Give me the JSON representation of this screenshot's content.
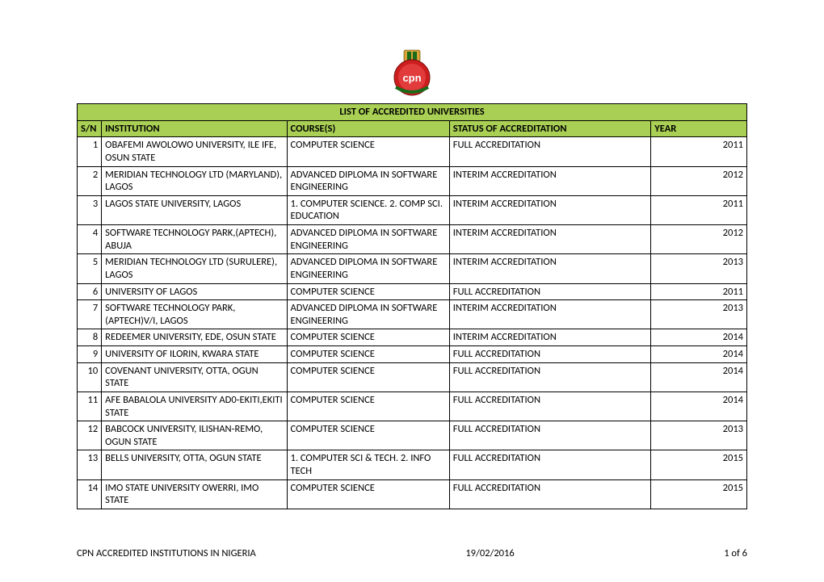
{
  "colors": {
    "header_bg": "#a9cf54",
    "border": "#000000",
    "page_bg": "#ffffff",
    "text": "#000000",
    "logo_green": "#1a6b1a",
    "logo_red": "#cc1e1e",
    "logo_gold": "#d8a43a"
  },
  "title": "LIST OF ACCREDITED  UNIVERSITIES",
  "columns": {
    "sn": "S/N",
    "institution": "INSTITUTION",
    "course": "COURSE(S)",
    "status": "STATUS OF ACCREDITATION",
    "year": "YEAR"
  },
  "rows": [
    {
      "sn": "1",
      "institution": "OBAFEMI AWOLOWO UNIVERSITY, ILE IFE, OSUN STATE",
      "course": "COMPUTER SCIENCE",
      "status": "FULL ACCREDITATION",
      "year": "2011"
    },
    {
      "sn": "2",
      "institution": "MERIDIAN TECHNOLOGY LTD (MARYLAND), LAGOS",
      "course": "ADVANCED DIPLOMA IN SOFTWARE ENGINEERING",
      "status": "INTERIM ACCREDITATION",
      "year": "2012"
    },
    {
      "sn": "3",
      "institution": "LAGOS STATE UNIVERSITY, LAGOS",
      "course": "1. COMPUTER SCIENCE. 2. COMP SCI. EDUCATION",
      "status": "INTERIM ACCREDITATION",
      "year": "2011"
    },
    {
      "sn": "4",
      "institution": "SOFTWARE TECHNOLOGY PARK,(APTECH), ABUJA",
      "course": "ADVANCED DIPLOMA IN SOFTWARE ENGINEERING",
      "status": "INTERIM ACCREDITATION",
      "year": "2012"
    },
    {
      "sn": "5",
      "institution": "MERIDIAN TECHNOLOGY LTD (SURULERE), LAGOS",
      "course": "ADVANCED DIPLOMA IN SOFTWARE ENGINEERING",
      "status": "INTERIM ACCREDITATION",
      "year": "2013"
    },
    {
      "sn": "6",
      "institution": "UNIVERSITY OF LAGOS",
      "course": "COMPUTER SCIENCE",
      "status": "FULL ACCREDITATION",
      "year": "2011"
    },
    {
      "sn": "7",
      "institution": "SOFTWARE TECHNOLOGY PARK,(APTECH)V/I, LAGOS",
      "course": "ADVANCED DIPLOMA IN SOFTWARE ENGINEERING",
      "status": "INTERIM ACCREDITATION",
      "year": "2013"
    },
    {
      "sn": "8",
      "institution": "REDEEMER UNIVERSITY, EDE, OSUN STATE",
      "course": "COMPUTER SCIENCE",
      "status": "INTERIM ACCREDITATION",
      "year": "2014"
    },
    {
      "sn": "9",
      "institution": "UNIVERSITY OF ILORIN, KWARA STATE",
      "course": "COMPUTER SCIENCE",
      "status": "FULL ACCREDITATION",
      "year": "2014"
    },
    {
      "sn": "10",
      "institution": "COVENANT UNIVERSITY, OTTA, OGUN STATE",
      "course": "COMPUTER SCIENCE",
      "status": "FULL ACCREDITATION",
      "year": "2014"
    },
    {
      "sn": "11",
      "institution": "AFE BABALOLA UNIVERSITY AD0-EKITI,EKITI STATE",
      "course": "COMPUTER SCIENCE",
      "status": "FULL ACCREDITATION",
      "year": "2014"
    },
    {
      "sn": "12",
      "institution": "BABCOCK UNIVERSITY, ILISHAN-REMO, OGUN STATE",
      "course": "COMPUTER SCIENCE",
      "status": "FULL ACCREDITATION",
      "year": "2013"
    },
    {
      "sn": "13",
      "institution": "BELLS UNIVERSITY, OTTA, OGUN STATE",
      "course": "1. COMPUTER SCI & TECH. 2. INFO TECH",
      "status": "FULL ACCREDITATION",
      "year": "2015"
    },
    {
      "sn": "14",
      "institution": "IMO STATE UNIVERSITY OWERRI, IMO STATE",
      "course": "COMPUTER SCIENCE",
      "status": "FULL ACCREDITATION",
      "year": "2015"
    }
  ],
  "footer": {
    "left": "CPN ACCREDITED INSTITUTIONS IN NIGERIA",
    "center": "19/02/2016",
    "right": "1 of 6"
  }
}
